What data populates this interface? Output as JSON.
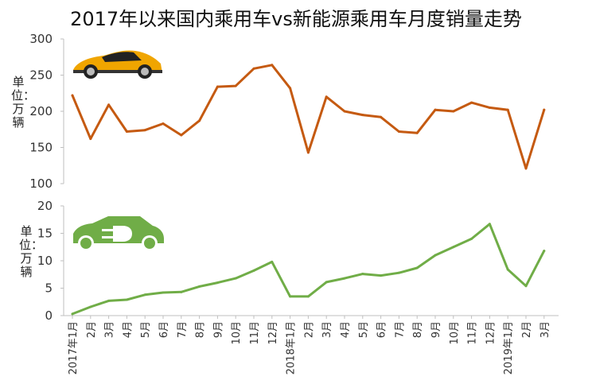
{
  "title": "2017年以来国内乘用车vs新能源乘用车月度销量走势",
  "chart_data": [
    {
      "type": "line",
      "ylabel": "单位：万辆",
      "ylim": [
        100,
        300
      ],
      "yticks": [
        100,
        150,
        200,
        250,
        300
      ],
      "categories": [
        "2017年1月",
        "2月",
        "3月",
        "4月",
        "5月",
        "6月",
        "7月",
        "8月",
        "9月",
        "10月",
        "11月",
        "12月",
        "2018年1月",
        "2月",
        "3月",
        "4月",
        "5月",
        "6月",
        "7月",
        "8月",
        "9月",
        "10月",
        "11月",
        "12月",
        "2019年1月",
        "2月",
        "3月"
      ],
      "series": [
        {
          "color": "#c55a11",
          "values": [
            222,
            162,
            209,
            172,
            174,
            183,
            167,
            187,
            234,
            235,
            259,
            264,
            232,
            143,
            220,
            200,
            195,
            192,
            172,
            170,
            202,
            200,
            212,
            205,
            202,
            121,
            202
          ]
        }
      ],
      "icon": "sports-car-icon"
    },
    {
      "type": "line",
      "ylabel": "单位：万辆",
      "ylim": [
        0,
        20
      ],
      "yticks": [
        0,
        5,
        10,
        15,
        20
      ],
      "categories": [
        "2017年1月",
        "2月",
        "3月",
        "4月",
        "5月",
        "6月",
        "7月",
        "8月",
        "9月",
        "10月",
        "11月",
        "12月",
        "2018年1月",
        "2月",
        "3月",
        "4月",
        "5月",
        "6月",
        "7月",
        "8月",
        "9月",
        "10月",
        "11月",
        "12月",
        "2019年1月",
        "2月",
        "3月"
      ],
      "series": [
        {
          "color": "#70ad47",
          "values": [
            0.3,
            1.6,
            2.7,
            2.9,
            3.8,
            4.2,
            4.3,
            5.3,
            6.0,
            6.8,
            8.2,
            9.8,
            3.5,
            3.5,
            6.1,
            6.8,
            7.6,
            7.3,
            7.8,
            8.7,
            11.0,
            12.5,
            14.0,
            16.7,
            8.4,
            5.4,
            11.8
          ]
        }
      ],
      "icon": "electric-car-icon"
    }
  ]
}
